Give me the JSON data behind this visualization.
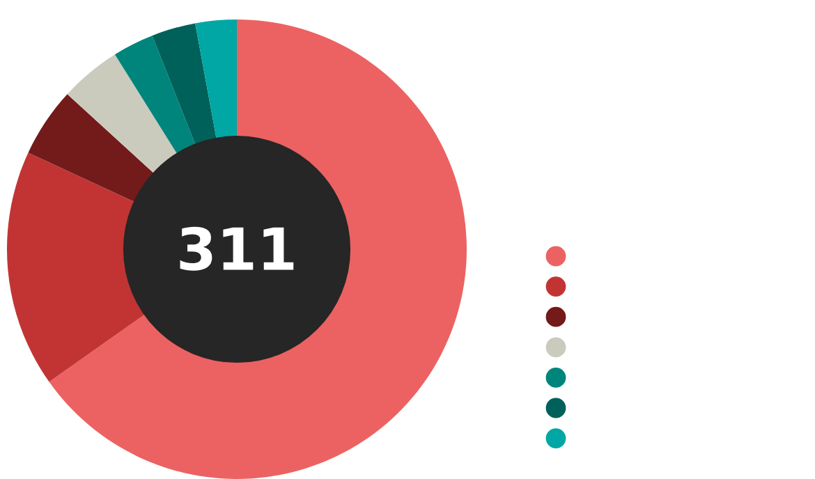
{
  "chart_data": {
    "type": "donut",
    "categories": [
      null,
      null,
      null,
      null,
      null,
      null,
      null
    ],
    "values": [
      65.2,
      16.7,
      4.9,
      4.3,
      2.9,
      3.1,
      2.9
    ],
    "colors": [
      "#ec6262",
      "#c23434",
      "#731a1a",
      "#cbcbbd",
      "#00857c",
      "#00615a",
      "#00a7a4"
    ],
    "annotations": [
      "311"
    ]
  }
}
